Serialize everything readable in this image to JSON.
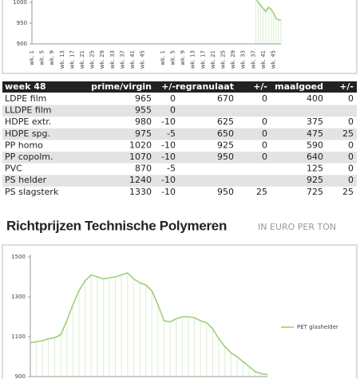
{
  "chart_data": [
    {
      "type": "line",
      "color": "#9ccf7c",
      "fill_color": "#dcefcf",
      "categories": [
        "wk. 1",
        null,
        null,
        null,
        "wk. 5",
        null,
        null,
        null,
        "wk. 9",
        null,
        null,
        null,
        "wk. 13",
        null,
        null,
        null,
        "wk. 17",
        null,
        null,
        null,
        "wk. 21",
        null,
        null,
        null,
        "wk. 25",
        null,
        null,
        null,
        "wk. 29",
        null,
        null,
        null,
        "wk. 33",
        null,
        null,
        null,
        "wk. 37",
        null,
        null,
        null,
        "wk. 41",
        null,
        null,
        null,
        "wk. 45",
        null,
        null,
        null,
        null,
        null,
        null,
        null,
        "wk. 1",
        null,
        null,
        null,
        "wk. 5",
        null,
        null,
        null,
        "wk. 9",
        null,
        null,
        null,
        "wk. 13",
        null,
        null,
        null,
        "wk. 17",
        null,
        null,
        null,
        "wk. 21",
        null,
        null,
        null,
        "wk. 25",
        null,
        null,
        null,
        "wk. 29",
        null,
        null,
        null,
        "wk. 33",
        null,
        null,
        null,
        "wk. 37",
        null,
        null,
        null,
        "wk. 41",
        null,
        null,
        null,
        "wk. 45",
        null,
        null,
        null
      ],
      "values": [
        null,
        null,
        null,
        null,
        null,
        null,
        null,
        null,
        null,
        null,
        null,
        null,
        null,
        null,
        null,
        null,
        null,
        null,
        null,
        null,
        null,
        null,
        null,
        null,
        null,
        null,
        null,
        null,
        null,
        null,
        null,
        null,
        null,
        null,
        null,
        null,
        null,
        null,
        null,
        null,
        null,
        null,
        null,
        null,
        null,
        null,
        null,
        null,
        null,
        null,
        null,
        null,
        null,
        null,
        null,
        null,
        null,
        null,
        null,
        null,
        null,
        null,
        null,
        null,
        null,
        null,
        null,
        null,
        null,
        null,
        null,
        null,
        null,
        null,
        null,
        null,
        null,
        null,
        null,
        null,
        null,
        null,
        null,
        null,
        null,
        null,
        null,
        null,
        null,
        1010,
        1000,
        992,
        985,
        978,
        988,
        984,
        975,
        962,
        958,
        957
      ],
      "ylim": [
        900,
        1000
      ],
      "yticks": [
        900,
        950,
        1000
      ]
    },
    {
      "type": "line",
      "color": "#9ccf7c",
      "fill_color": "#dcefcf",
      "legend": "right",
      "series": [
        {
          "name": "PET glashelder",
          "color": "#9ccf7c",
          "values": [
            1070,
            1075,
            1080,
            1090,
            1095,
            1110,
            1180,
            1260,
            1330,
            1380,
            1410,
            1400,
            1390,
            1395,
            1400,
            1410,
            1420,
            1390,
            1370,
            1360,
            1330,
            1260,
            1180,
            1175,
            1190,
            1200,
            1200,
            1195,
            1180,
            1170,
            1140,
            1090,
            1050,
            1020,
            1000,
            975,
            950,
            925,
            915,
            910
          ]
        }
      ],
      "ylim": [
        900,
        1500
      ],
      "yticks": [
        900,
        1100,
        1300,
        1500
      ]
    }
  ],
  "table": {
    "header": [
      "week 48",
      "prime/virgin",
      "+/-",
      "regranulaat",
      "+/-",
      "maalgoed",
      "+/-"
    ],
    "rows": [
      [
        "LDPE film",
        "965",
        "0",
        "670",
        "0",
        "400",
        "0"
      ],
      [
        "LLDPE film",
        "955",
        "0",
        null,
        null,
        null,
        null
      ],
      [
        "HDPE extr.",
        "980",
        "-10",
        "625",
        "0",
        "375",
        "0"
      ],
      [
        "HDPE spg.",
        "975",
        "-5",
        "650",
        "0",
        "475",
        "25"
      ],
      [
        "PP homo",
        "1020",
        "-10",
        "925",
        "0",
        "590",
        "0"
      ],
      [
        "PP copolm.",
        "1070",
        "-10",
        "950",
        "0",
        "640",
        "0"
      ],
      [
        "PVC",
        "870",
        "-5",
        null,
        null,
        "125",
        "0"
      ],
      [
        "PS helder",
        "1240",
        "-10",
        null,
        null,
        "925",
        "0"
      ],
      [
        "PS slagsterk",
        "1330",
        "-10",
        "950",
        "25",
        "725",
        "25"
      ]
    ]
  },
  "heading": {
    "title": "Richtprijzen Technische Polymeren",
    "subtitle": "IN EURO PER TON"
  }
}
